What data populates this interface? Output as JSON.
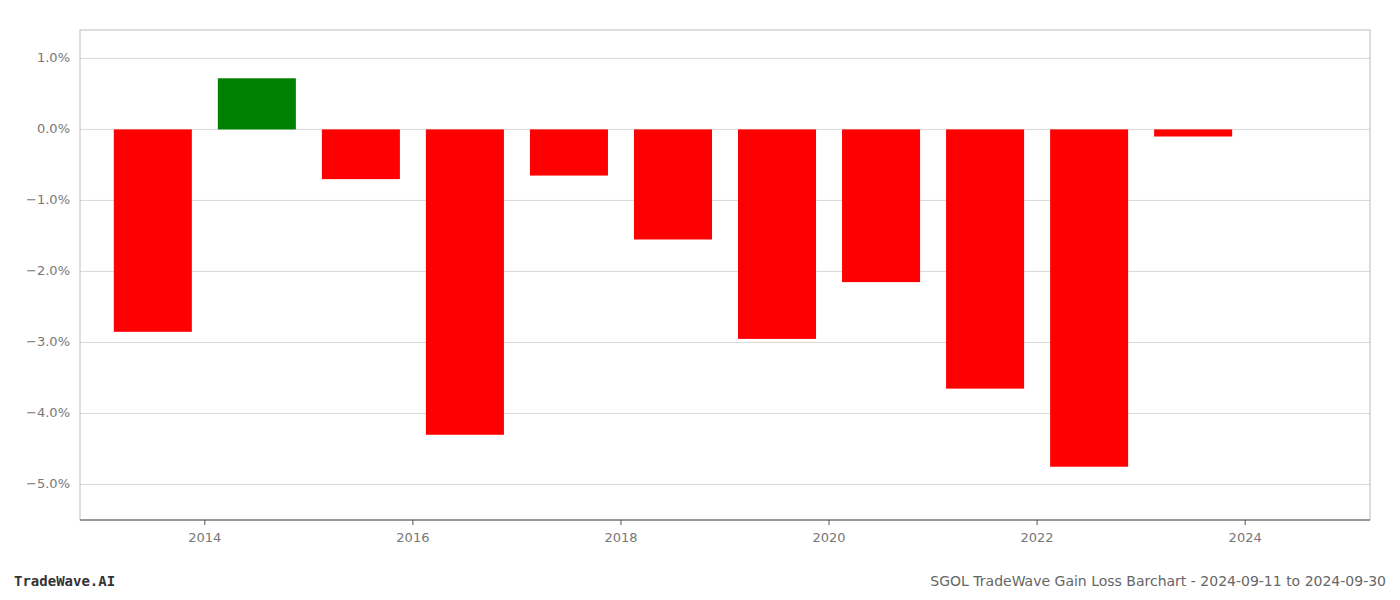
{
  "chart_data": {
    "type": "bar",
    "x": [
      2013.5,
      2014.5,
      2015.5,
      2016.5,
      2017.5,
      2018.5,
      2019.5,
      2020.5,
      2021.5,
      2022.5,
      2023.5
    ],
    "values": [
      -2.85,
      0.72,
      -0.7,
      -4.3,
      -0.65,
      -1.55,
      -2.95,
      -2.15,
      -3.65,
      -4.75,
      -0.1
    ],
    "colors": [
      "#ff0000",
      "#008000",
      "#ff0000",
      "#ff0000",
      "#ff0000",
      "#ff0000",
      "#ff0000",
      "#ff0000",
      "#ff0000",
      "#ff0000",
      "#ff0000"
    ],
    "xlim": [
      2012.8,
      2025.2
    ],
    "xticks": [
      2014,
      2016,
      2018,
      2020,
      2022,
      2024
    ],
    "ylim": [
      -5.5,
      1.4
    ],
    "yticks": [
      {
        "value": 1.0,
        "label": "1.0%"
      },
      {
        "value": 0.0,
        "label": "0.0%"
      },
      {
        "value": -1.0,
        "label": "−1.0%"
      },
      {
        "value": -2.0,
        "label": "−2.0%"
      },
      {
        "value": -3.0,
        "label": "−3.0%"
      },
      {
        "value": -4.0,
        "label": "−4.0%"
      },
      {
        "value": -5.0,
        "label": "−5.0%"
      }
    ],
    "grid": true,
    "annotations": [
      "TradeWave.AI",
      "SGOL TradeWave Gain Loss Barchart - 2024-09-11 to 2024-09-30"
    ]
  }
}
